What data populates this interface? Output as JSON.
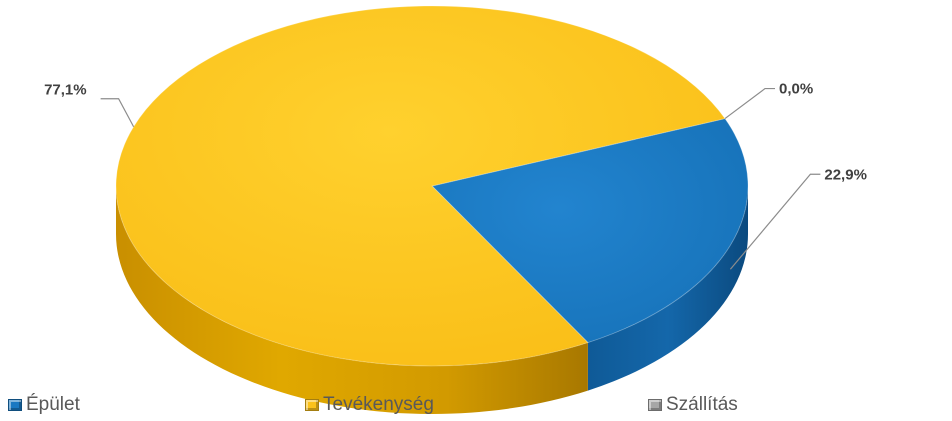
{
  "chart_data": {
    "type": "pie",
    "style": "3d",
    "title": "",
    "slices": [
      {
        "label": "Épület",
        "value": 22.9,
        "value_label": "22,9%",
        "color": "#1a78c2"
      },
      {
        "label": "Tevékenység",
        "value": 77.1,
        "value_label": "77,1%",
        "color": "#fcc21b"
      },
      {
        "label": "Szállítás",
        "value": 0.0,
        "value_label": "0,0%",
        "color": "#a6a6a6"
      }
    ],
    "legend": {
      "position": "bottom",
      "items": [
        "Épület",
        "Tevékenység",
        "Szállítás"
      ]
    }
  }
}
